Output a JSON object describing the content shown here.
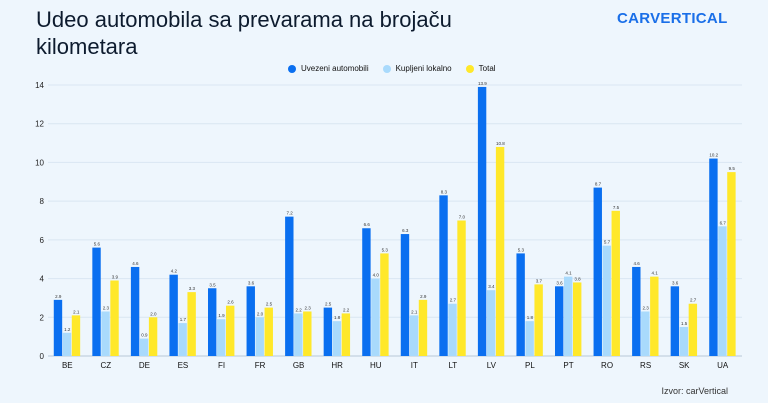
{
  "title": "Udeo automobila sa prevarama na brojaču kilometara",
  "logo": "carVertical",
  "source": "Izvor: carVertical",
  "colors": {
    "Uvezeni automobili": "#0a6ff0",
    "Kupljeni lokalno": "#a9dafc",
    "Total": "#ffe82a",
    "grid": "#d9e6f2"
  },
  "chart_data": {
    "type": "bar",
    "title": "Udeo automobila sa prevarama na brojaču kilometara",
    "xlabel": "",
    "ylabel": "",
    "ylim": [
      0,
      14
    ],
    "yticks": [
      0,
      2,
      4,
      6,
      8,
      10,
      12,
      14
    ],
    "grid": true,
    "legend": "top-center",
    "categories": [
      "BE",
      "CZ",
      "DE",
      "ES",
      "FI",
      "FR",
      "GB",
      "HR",
      "HU",
      "IT",
      "LT",
      "LV",
      "PL",
      "PT",
      "RO",
      "RS",
      "SK",
      "UA"
    ],
    "series": [
      {
        "name": "Uvezeni automobili",
        "values": [
          2.9,
          5.6,
          4.6,
          4.2,
          3.5,
          3.6,
          7.2,
          2.5,
          6.6,
          6.3,
          8.3,
          13.9,
          5.3,
          3.6,
          8.7,
          4.6,
          3.6,
          10.2
        ]
      },
      {
        "name": "Kupljeni lokalno",
        "values": [
          1.2,
          2.3,
          0.9,
          1.7,
          1.9,
          2.0,
          2.2,
          1.8,
          4.0,
          2.1,
          2.7,
          3.4,
          1.8,
          4.1,
          5.7,
          2.3,
          1.5,
          6.7
        ]
      },
      {
        "name": "Total",
        "values": [
          2.1,
          3.9,
          2.0,
          3.3,
          2.6,
          2.5,
          2.3,
          2.2,
          5.3,
          2.9,
          7.0,
          10.8,
          3.7,
          3.8,
          7.5,
          4.1,
          2.7,
          9.5
        ]
      }
    ]
  }
}
